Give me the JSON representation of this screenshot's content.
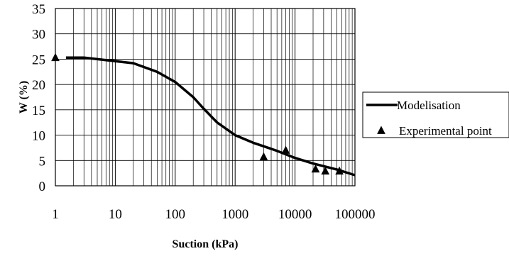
{
  "chart_data": {
    "type": "line",
    "xlabel": "Suction (kPa)",
    "ylabel": "W (%)",
    "xscale": "log",
    "xlim": [
      1,
      100000
    ],
    "ylim": [
      0,
      35
    ],
    "x_ticks": [
      "1",
      "10",
      "100",
      "1000",
      "10000",
      "100000"
    ],
    "y_ticks": [
      "0",
      "5",
      "10",
      "15",
      "20",
      "25",
      "30",
      "35"
    ],
    "grid": true,
    "legend_position": "right",
    "series": [
      {
        "name": "Modelisation",
        "style": "line",
        "color": "#000000",
        "x": [
          1.5,
          3,
          5,
          10,
          20,
          50,
          100,
          200,
          300,
          500,
          1000,
          2000,
          3000,
          5000,
          10000,
          20000,
          50000,
          100000
        ],
        "y": [
          25.3,
          25.3,
          25.0,
          24.6,
          24.2,
          22.5,
          20.5,
          17.5,
          15.2,
          12.5,
          10.0,
          8.5,
          7.8,
          6.9,
          5.5,
          4.4,
          3.2,
          2.1
        ]
      },
      {
        "name": "Experimental point",
        "style": "marker",
        "marker": "triangle",
        "color": "#000000",
        "x": [
          1,
          3000,
          7000,
          22000,
          32000,
          55000
        ],
        "y": [
          25.3,
          5.7,
          7.0,
          3.3,
          2.9,
          2.9
        ]
      }
    ]
  }
}
